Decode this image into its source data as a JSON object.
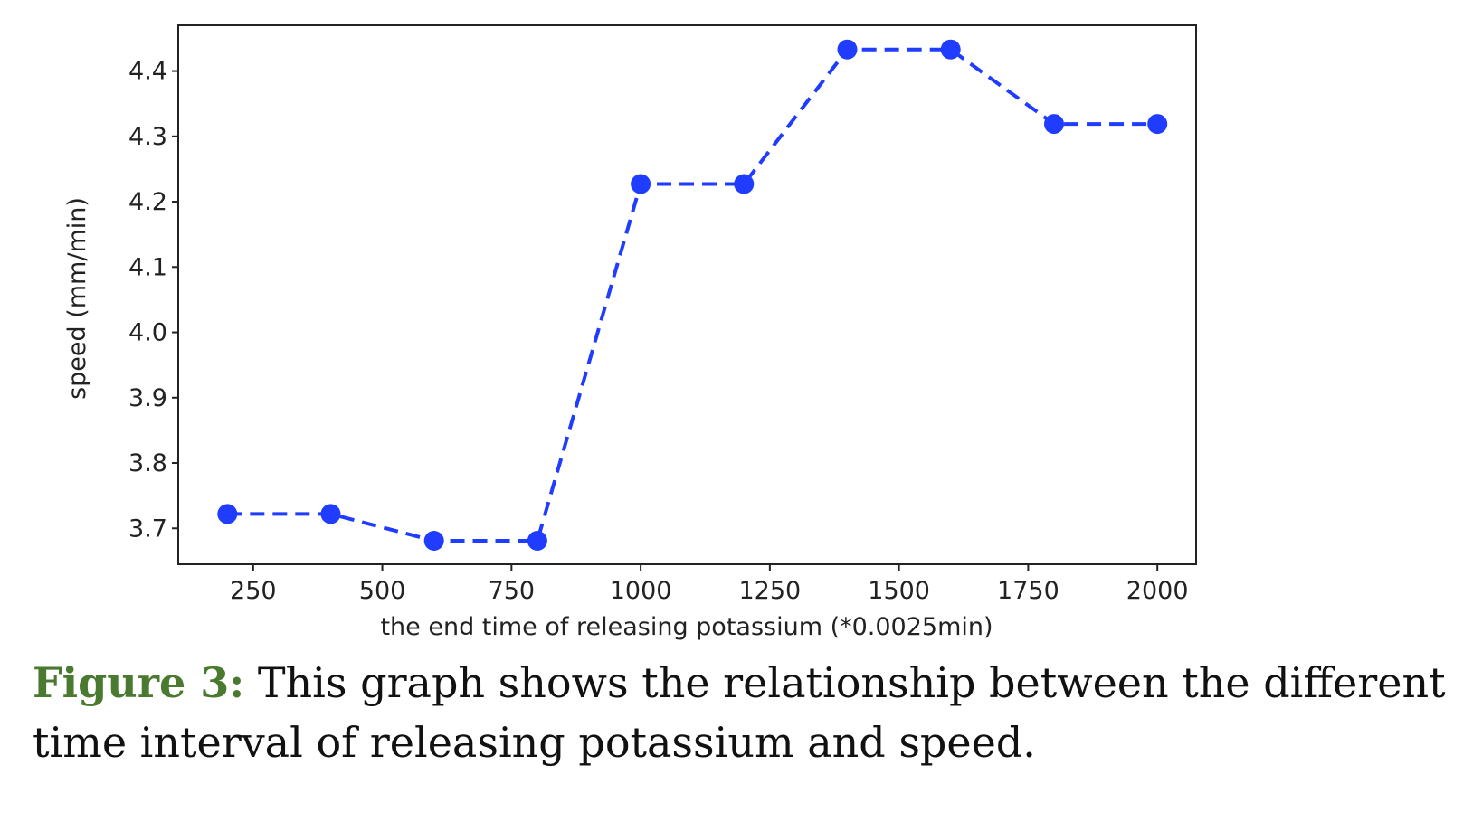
{
  "chart_data": {
    "type": "line",
    "x": [
      200,
      400,
      600,
      800,
      1000,
      1200,
      1400,
      1600,
      1800,
      2000
    ],
    "series": [
      {
        "values": [
          3.722,
          3.722,
          3.681,
          3.681,
          4.227,
          4.227,
          4.433,
          4.433,
          4.319,
          4.319
        ]
      }
    ],
    "xlabel": "the end time of releasing potassium (*0.0025min)",
    "ylabel": "speed (mm/min)",
    "xlim": [
      105,
      2075
    ],
    "ylim": [
      3.645,
      4.47
    ],
    "xticks": [
      "250",
      "500",
      "750",
      "1000",
      "1250",
      "1500",
      "1750",
      "2000"
    ],
    "yticks": [
      "3.7",
      "3.8",
      "3.9",
      "4.0",
      "4.1",
      "4.2",
      "4.3",
      "4.4"
    ],
    "line_style": "dashed",
    "marker": "circle",
    "color": "#1f3cff",
    "grid": false
  },
  "caption": {
    "label": "Figure 3:",
    "text": " This graph shows the relationship between the different time interval of releasing potassium and speed."
  }
}
